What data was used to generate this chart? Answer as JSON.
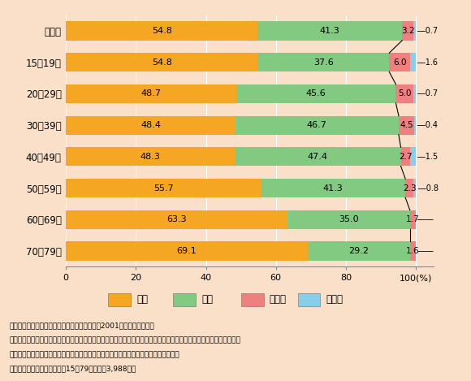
{
  "categories": [
    "全　体",
    "15～19歳",
    "20～29歳",
    "30～39歳",
    "40～49歳",
    "50～59歳",
    "60～69歳",
    "70～79歳"
  ],
  "zaitaku": [
    54.8,
    54.8,
    48.7,
    48.4,
    48.3,
    55.7,
    63.3,
    69.1
  ],
  "shisetsu": [
    41.3,
    37.6,
    45.6,
    46.7,
    47.4,
    41.3,
    35.0,
    29.2
  ],
  "sonota": [
    3.2,
    6.0,
    5.0,
    4.5,
    2.7,
    2.3,
    1.7,
    1.6
  ],
  "mukaitou": [
    0.7,
    1.6,
    0.7,
    0.4,
    1.5,
    0.8,
    null,
    null
  ],
  "color_zaitaku": "#F5A623",
  "color_shisetsu": "#82C982",
  "color_sonota": "#F08080",
  "color_mukaitou": "#87CEEB",
  "bg_color": "#FAE0C8",
  "legend_bg": "#D8EAF5",
  "note_line1": "（備考）１．内閣府『国民生活選好度調査』（2001年）により作成。",
  "note_line2": "　　　　２．「あなたは、老後に介護が必要となった場合、どこで介護を受けたいと思いますか。次の中からあなたの",
  "note_line3": "　　　　　　お考えに近いものをお答えください。」という問に対する回答者の割合。",
  "note_line4": "　　　　３．回答者は全国の15～79歳の男女3,988人。",
  "legend_labels": [
    "在宅",
    "施設",
    "その他",
    "無回答"
  ]
}
